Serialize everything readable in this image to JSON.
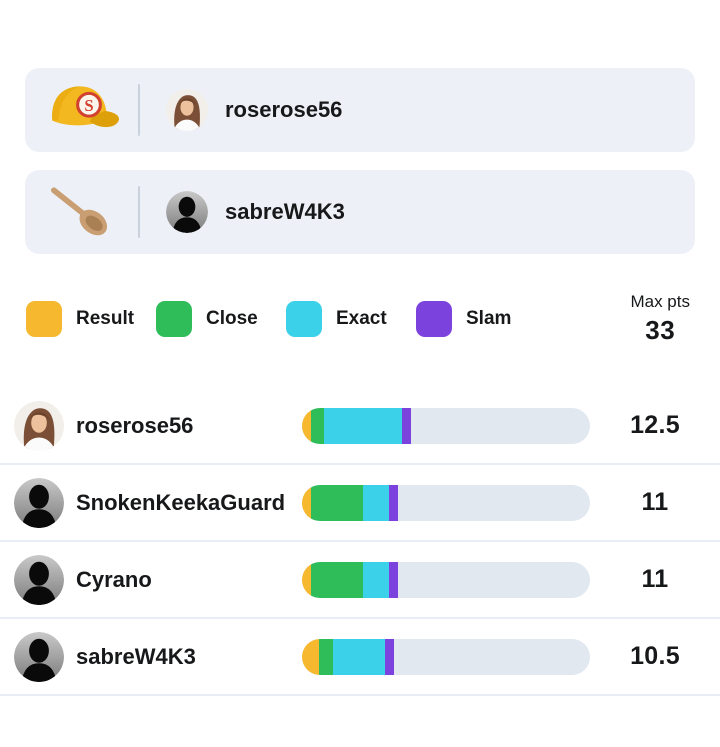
{
  "banners": [
    {
      "icon": "billed-cap-emoji",
      "avatar": "photo",
      "username": "roserose56"
    },
    {
      "icon": "wooden-spoon-emoji",
      "avatar": "silhouette",
      "username": "sabreW4K3"
    }
  ],
  "legend": {
    "items": [
      {
        "label": "Result",
        "color": "#F5B82E"
      },
      {
        "label": "Close",
        "color": "#2EBD59"
      },
      {
        "label": "Exact",
        "color": "#3BD1E8"
      },
      {
        "label": "Slam",
        "color": "#7C42DE"
      }
    ],
    "max_pts_label": "Max pts",
    "max_pts_value": "33"
  },
  "leaderboard": {
    "max_pts": 33,
    "rows": [
      {
        "name": "roserose56",
        "avatar": "photo",
        "total": "12.5",
        "segments": {
          "result": 1,
          "close": 1.5,
          "exact": 9,
          "slam": 1
        }
      },
      {
        "name": "SnokenKeekaGuard",
        "avatar": "silhouette",
        "total": "11",
        "segments": {
          "result": 1,
          "close": 6,
          "exact": 3,
          "slam": 1
        }
      },
      {
        "name": "Cyrano",
        "avatar": "silhouette",
        "total": "11",
        "segments": {
          "result": 1,
          "close": 6,
          "exact": 3,
          "slam": 1
        }
      },
      {
        "name": "sabreW4K3",
        "avatar": "silhouette",
        "total": "10.5",
        "segments": {
          "result": 2,
          "close": 1.5,
          "exact": 6,
          "slam": 1
        }
      }
    ]
  },
  "colors": {
    "banner_bg": "#EDF1F7",
    "track": "#E2E8F0",
    "separator": "#E9EEF6"
  },
  "chart_data": {
    "type": "bar",
    "stacked": true,
    "orientation": "horizontal",
    "categories": [
      "roserose56",
      "SnokenKeekaGuard",
      "Cyrano",
      "sabreW4K3"
    ],
    "series": [
      {
        "name": "Result",
        "color": "#F5B82E",
        "values": [
          1,
          1,
          1,
          2
        ]
      },
      {
        "name": "Close",
        "color": "#2EBD59",
        "values": [
          1.5,
          6,
          6,
          1.5
        ]
      },
      {
        "name": "Exact",
        "color": "#3BD1E8",
        "values": [
          9,
          3,
          3,
          6
        ]
      },
      {
        "name": "Slam",
        "color": "#7C42DE",
        "values": [
          1,
          1,
          1,
          1
        ]
      }
    ],
    "totals": [
      12.5,
      11,
      11,
      10.5
    ],
    "xlim": [
      0,
      33
    ],
    "legend_position": "top",
    "title": "Max pts 33"
  }
}
